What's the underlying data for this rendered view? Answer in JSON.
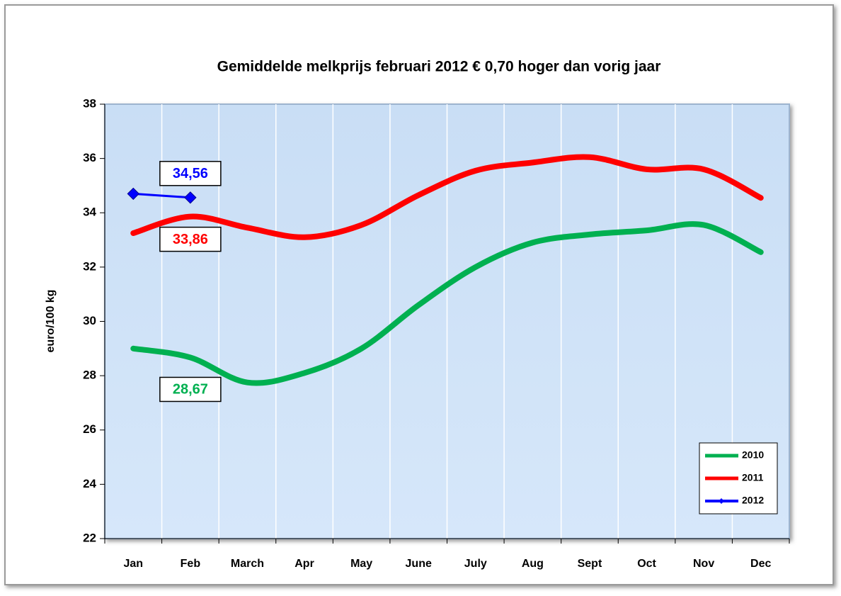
{
  "chart_data": {
    "type": "line",
    "title": "Gemiddelde melkprijs februari 2012 € 0,70 hoger dan vorig jaar",
    "ylabel": "euro/100 kg",
    "categories": [
      "Jan",
      "Feb",
      "March",
      "Apr",
      "May",
      "June",
      "July",
      "Aug",
      "Sept",
      "Oct",
      "Nov",
      "Dec"
    ],
    "series": [
      {
        "name": "2010",
        "color": "#00b050",
        "line_width": 8,
        "smooth": true,
        "label_position": "below",
        "values": [
          29.0,
          28.67,
          27.75,
          28.1,
          29.0,
          30.6,
          32.0,
          32.9,
          33.2,
          33.35,
          33.55,
          32.55
        ],
        "value_labels": [
          null,
          "28,67",
          null,
          null,
          null,
          null,
          null,
          null,
          null,
          null,
          null,
          null
        ]
      },
      {
        "name": "2011",
        "color": "#ff0000",
        "line_width": 8,
        "smooth": true,
        "label_position": "below",
        "values": [
          33.25,
          33.86,
          33.45,
          33.1,
          33.55,
          34.65,
          35.55,
          35.85,
          36.05,
          35.6,
          35.6,
          34.55
        ],
        "value_labels": [
          null,
          "33,86",
          null,
          null,
          null,
          null,
          null,
          null,
          null,
          null,
          null,
          null
        ]
      },
      {
        "name": "2012",
        "color": "#0000ff",
        "line_width": 3,
        "smooth": false,
        "marker": "diamond",
        "label_position": "above",
        "values": [
          34.7,
          34.56,
          null,
          null,
          null,
          null,
          null,
          null,
          null,
          null,
          null,
          null
        ],
        "value_labels": [
          null,
          "34,56",
          null,
          null,
          null,
          null,
          null,
          null,
          null,
          null,
          null,
          null
        ]
      }
    ],
    "ylim": [
      22,
      38
    ],
    "yticks": [
      22,
      24,
      26,
      28,
      30,
      32,
      34,
      36,
      38
    ],
    "grid": "x",
    "legend": "bottom-right"
  }
}
